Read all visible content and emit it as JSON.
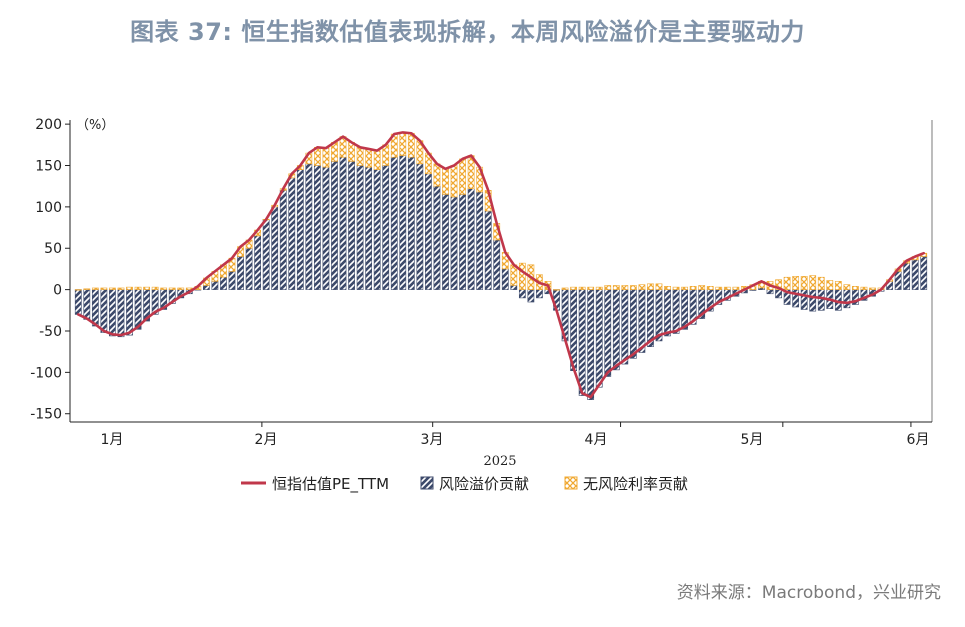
{
  "title": "图表 37: 恒生指数估值表现拆解，本周风险溢价是主要驱动力",
  "source": "资料来源：Macrobond，兴业研究",
  "chart_data": {
    "type": "bar",
    "unit": "（%）",
    "year_label": "2025",
    "x_labels": [
      "1月",
      "2月",
      "3月",
      "4月",
      "5月",
      "6月"
    ],
    "y_ticks": [
      200,
      150,
      100,
      50,
      0,
      -50,
      -100,
      -150
    ],
    "ylim": [
      -160,
      205
    ],
    "legend_position": "bottom",
    "colors": {
      "line": "#c0374a",
      "risk_premium": "#3d4a6b",
      "risk_free": "#f0a830"
    },
    "series": [
      {
        "name": "恒指估值PE_TTM",
        "kind": "line",
        "values": [
          -30,
          -35,
          -42,
          -50,
          -54,
          -55,
          -52,
          -45,
          -35,
          -27,
          -22,
          -15,
          -8,
          -3,
          4,
          14,
          22,
          30,
          38,
          52,
          60,
          72,
          85,
          102,
          122,
          140,
          150,
          165,
          172,
          171,
          178,
          185,
          178,
          172,
          170,
          168,
          175,
          188,
          190,
          189,
          180,
          165,
          152,
          146,
          150,
          158,
          162,
          148,
          120,
          80,
          45,
          30,
          22,
          15,
          8,
          5,
          -25,
          -60,
          -95,
          -125,
          -130,
          -115,
          -100,
          -92,
          -85,
          -78,
          -70,
          -62,
          -55,
          -52,
          -50,
          -45,
          -38,
          -30,
          -22,
          -15,
          -10,
          -5,
          0,
          5,
          10,
          5,
          2,
          -3,
          -5,
          -7,
          -9,
          -10,
          -12,
          -15,
          -16,
          -14,
          -10,
          -6,
          0,
          12,
          25,
          35,
          40,
          44
        ]
      },
      {
        "name": "风险溢价贡献",
        "kind": "bar",
        "values": [
          -30,
          -36,
          -44,
          -52,
          -56,
          -57,
          -55,
          -48,
          -38,
          -30,
          -24,
          -17,
          -10,
          -5,
          0,
          5,
          10,
          15,
          22,
          40,
          50,
          65,
          85,
          100,
          120,
          135,
          145,
          152,
          150,
          148,
          155,
          160,
          155,
          150,
          148,
          145,
          150,
          160,
          162,
          160,
          152,
          140,
          125,
          115,
          112,
          115,
          122,
          118,
          95,
          60,
          25,
          5,
          -10,
          -15,
          -10,
          -5,
          -25,
          -62,
          -98,
          -128,
          -133,
          -118,
          -105,
          -97,
          -90,
          -83,
          -76,
          -69,
          -62,
          -56,
          -53,
          -48,
          -42,
          -35,
          -26,
          -18,
          -13,
          -8,
          -4,
          -1,
          2,
          -5,
          -10,
          -18,
          -21,
          -24,
          -26,
          -25,
          -23,
          -25,
          -22,
          -18,
          -13,
          -8,
          -2,
          10,
          22,
          32,
          36,
          40
        ]
      },
      {
        "name": "无风险利率贡献",
        "kind": "bar",
        "values": [
          0,
          1,
          2,
          2,
          2,
          2,
          3,
          3,
          3,
          3,
          2,
          2,
          2,
          2,
          4,
          9,
          12,
          15,
          16,
          12,
          10,
          7,
          0,
          2,
          2,
          5,
          5,
          13,
          22,
          23,
          23,
          25,
          23,
          22,
          22,
          23,
          25,
          28,
          28,
          29,
          28,
          25,
          27,
          31,
          38,
          43,
          40,
          30,
          25,
          20,
          20,
          25,
          32,
          30,
          18,
          10,
          0,
          2,
          3,
          3,
          3,
          3,
          5,
          5,
          5,
          5,
          6,
          7,
          7,
          4,
          3,
          3,
          4,
          5,
          4,
          3,
          3,
          3,
          4,
          6,
          8,
          10,
          12,
          15,
          16,
          16,
          17,
          15,
          11,
          10,
          6,
          4,
          3,
          2,
          2,
          2,
          3,
          3,
          4,
          4
        ]
      }
    ]
  },
  "legend": [
    {
      "label": "恒指估值PE_TTM",
      "icon": "line-swatch-icon"
    },
    {
      "label": "风险溢价贡献",
      "icon": "hatched-navy-swatch-icon"
    },
    {
      "label": "无风险利率贡献",
      "icon": "hatched-orange-swatch-icon"
    }
  ]
}
